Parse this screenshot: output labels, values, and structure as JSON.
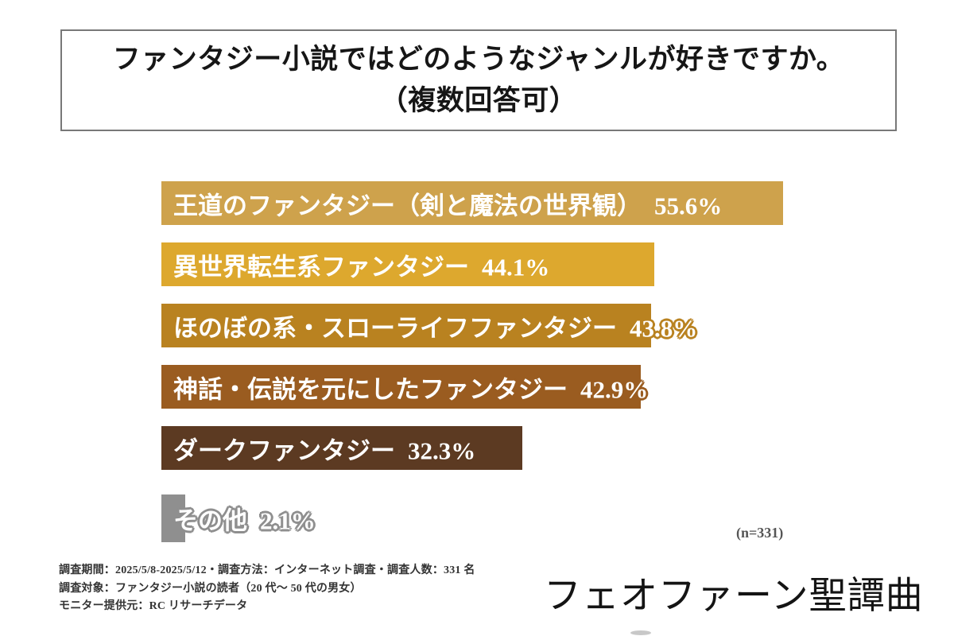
{
  "title": {
    "line1": "ファンタジー小説ではどのようなジャンルが好きですか。",
    "line2": "（複数回答可）"
  },
  "chart_data": {
    "type": "bar",
    "orientation": "horizontal",
    "unit": "%",
    "title": "ファンタジー小説ではどのようなジャンルが好きですか。（複数回答可）",
    "sample_size_label": "(n=331)",
    "xlim": [
      0,
      60
    ],
    "categories": [
      "王道のファンタジー（剣と魔法の世界観）",
      "異世界転生系ファンタジー",
      "ほのぼの系・スローライフファンタジー",
      "神話・伝説を元にしたファンタジー",
      "ダークファンタジー",
      "その他"
    ],
    "values": [
      55.6,
      44.1,
      43.8,
      42.9,
      32.3,
      2.1
    ],
    "bars": [
      {
        "label": "王道のファンタジー（剣と魔法の世界観）",
        "value": 55.6,
        "display": "55.6%",
        "color": "#CEA24C"
      },
      {
        "label": "異世界転生系ファンタジー",
        "value": 44.1,
        "display": "44.1%",
        "color": "#DDA82E"
      },
      {
        "label": "ほのぼの系・スローライフファンタジー",
        "value": 43.8,
        "display": "43.8%",
        "color": "#B98220"
      },
      {
        "label": "神話・伝説を元にしたファンタジー",
        "value": 42.9,
        "display": "42.9%",
        "color": "#9A5C20"
      },
      {
        "label": "ダークファンタジー",
        "value": 32.3,
        "display": "32.3%",
        "color": "#5C3A22"
      },
      {
        "label": "その他",
        "value": 2.1,
        "display": "2.1%",
        "color": "#8F8F8F"
      }
    ]
  },
  "footer": {
    "note_line1": "調査期間：2025/5/8-2025/5/12・調査方法：インターネット調査・調査人数：331 名",
    "note_line2": "調査対象：ファンタジー小説の読者（20 代～ 50 代の男女）",
    "note_line3": "モニター提供元：RC リサーチデータ",
    "logo_text": "フェオファーン聖譚曲"
  }
}
